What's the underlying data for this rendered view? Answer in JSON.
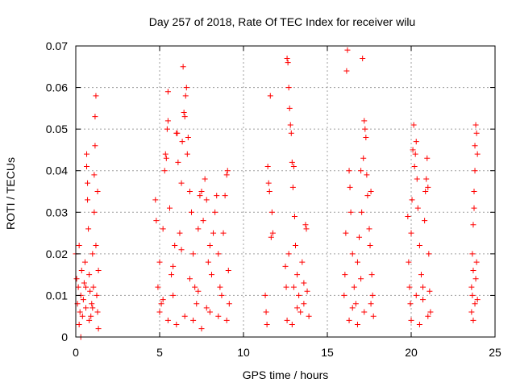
{
  "chart_data": {
    "type": "scatter",
    "title": "Day 257 of 2018, Rate Of TEC Index for receiver wilu",
    "xlabel": "GPS time / hours",
    "ylabel": "ROTI / TECUs",
    "xlim": [
      0,
      25
    ],
    "ylim": [
      0,
      0.07
    ],
    "xticks": [
      0,
      5,
      10,
      15,
      20,
      25
    ],
    "xtick_labels": [
      "0",
      "5",
      "10",
      "15",
      "20",
      "25"
    ],
    "yticks": [
      0,
      0.01,
      0.02,
      0.03,
      0.04,
      0.05,
      0.06,
      0.07
    ],
    "ytick_labels": [
      "0",
      "0.01",
      "0.02",
      "0.03",
      "0.04",
      "0.05",
      "0.06",
      "0.07"
    ],
    "grid": true,
    "marker": "+",
    "color": "#ff0000",
    "series": [
      {
        "name": "ROTI",
        "points": [
          [
            0.0,
            0.02
          ],
          [
            0.05,
            0.014
          ],
          [
            0.1,
            0.008
          ],
          [
            0.15,
            0.012
          ],
          [
            0.2,
            0.022
          ],
          [
            0.25,
            0.006
          ],
          [
            0.3,
            0.01
          ],
          [
            0.35,
            0.016
          ],
          [
            0.4,
            0.005
          ],
          [
            0.45,
            0.009
          ],
          [
            0.5,
            0.013
          ],
          [
            0.55,
            0.018
          ],
          [
            0.6,
            0.007
          ],
          [
            0.65,
            0.044
          ],
          [
            0.65,
            0.041
          ],
          [
            0.7,
            0.037
          ],
          [
            0.7,
            0.033
          ],
          [
            0.75,
            0.026
          ],
          [
            0.8,
            0.015
          ],
          [
            0.85,
            0.011
          ],
          [
            0.9,
            0.005
          ],
          [
            0.95,
            0.008
          ],
          [
            1.0,
            0.02
          ],
          [
            1.05,
            0.012
          ],
          [
            1.1,
            0.03
          ],
          [
            1.1,
            0.039
          ],
          [
            1.15,
            0.053
          ],
          [
            1.15,
            0.046
          ],
          [
            1.2,
            0.058
          ],
          [
            1.2,
            0.022
          ],
          [
            1.25,
            0.01
          ],
          [
            1.3,
            0.006
          ],
          [
            1.3,
            0.035
          ],
          [
            1.35,
            0.016
          ],
          [
            1.35,
            0.002
          ],
          [
            0.3,
            0.0
          ],
          [
            0.2,
            0.003
          ],
          [
            1.0,
            0.007
          ],
          [
            0.8,
            0.004
          ],
          [
            0.6,
            0.012
          ],
          [
            4.75,
            0.033
          ],
          [
            4.8,
            0.028
          ],
          [
            4.9,
            0.012
          ],
          [
            5.0,
            0.018
          ],
          [
            5.1,
            0.008
          ],
          [
            5.2,
            0.026
          ],
          [
            5.3,
            0.04
          ],
          [
            5.35,
            0.044
          ],
          [
            5.4,
            0.043
          ],
          [
            5.45,
            0.05
          ],
          [
            5.5,
            0.052
          ],
          [
            5.5,
            0.059
          ],
          [
            5.6,
            0.031
          ],
          [
            5.7,
            0.015
          ],
          [
            5.8,
            0.01
          ],
          [
            5.9,
            0.022
          ],
          [
            6.0,
            0.049
          ],
          [
            6.05,
            0.049
          ],
          [
            6.1,
            0.042
          ],
          [
            6.2,
            0.025
          ],
          [
            6.3,
            0.037
          ],
          [
            6.35,
            0.047
          ],
          [
            6.4,
            0.065
          ],
          [
            6.45,
            0.054
          ],
          [
            6.5,
            0.053
          ],
          [
            6.55,
            0.058
          ],
          [
            6.6,
            0.06
          ],
          [
            6.65,
            0.044
          ],
          [
            6.7,
            0.048
          ],
          [
            6.8,
            0.035
          ],
          [
            6.9,
            0.03
          ],
          [
            7.0,
            0.02
          ],
          [
            7.1,
            0.012
          ],
          [
            7.2,
            0.008
          ],
          [
            7.3,
            0.026
          ],
          [
            7.4,
            0.034
          ],
          [
            7.5,
            0.035
          ],
          [
            7.6,
            0.028
          ],
          [
            7.7,
            0.038
          ],
          [
            7.8,
            0.033
          ],
          [
            7.9,
            0.018
          ],
          [
            8.0,
            0.022
          ],
          [
            8.1,
            0.015
          ],
          [
            8.2,
            0.025
          ],
          [
            8.3,
            0.03
          ],
          [
            8.4,
            0.034
          ],
          [
            8.5,
            0.02
          ],
          [
            8.6,
            0.012
          ],
          [
            8.7,
            0.01
          ],
          [
            8.8,
            0.025
          ],
          [
            8.9,
            0.034
          ],
          [
            9.0,
            0.039
          ],
          [
            9.05,
            0.04
          ],
          [
            9.1,
            0.016
          ],
          [
            9.15,
            0.008
          ],
          [
            5.0,
            0.006
          ],
          [
            5.5,
            0.004
          ],
          [
            6.0,
            0.003
          ],
          [
            6.5,
            0.005
          ],
          [
            7.0,
            0.004
          ],
          [
            7.5,
            0.002
          ],
          [
            8.0,
            0.006
          ],
          [
            8.5,
            0.005
          ],
          [
            9.0,
            0.004
          ],
          [
            5.2,
            0.009
          ],
          [
            5.8,
            0.017
          ],
          [
            6.3,
            0.021
          ],
          [
            6.8,
            0.014
          ],
          [
            7.3,
            0.011
          ],
          [
            7.8,
            0.007
          ],
          [
            11.3,
            0.01
          ],
          [
            11.35,
            0.006
          ],
          [
            11.4,
            0.003
          ],
          [
            11.45,
            0.041
          ],
          [
            11.5,
            0.037
          ],
          [
            11.55,
            0.035
          ],
          [
            11.6,
            0.058
          ],
          [
            11.65,
            0.024
          ],
          [
            11.7,
            0.03
          ],
          [
            11.75,
            0.025
          ],
          [
            12.5,
            0.017
          ],
          [
            12.55,
            0.012
          ],
          [
            12.6,
            0.067
          ],
          [
            12.65,
            0.066
          ],
          [
            12.7,
            0.06
          ],
          [
            12.75,
            0.055
          ],
          [
            12.8,
            0.051
          ],
          [
            12.85,
            0.049
          ],
          [
            12.9,
            0.042
          ],
          [
            12.95,
            0.036
          ],
          [
            13.0,
            0.041
          ],
          [
            13.05,
            0.029
          ],
          [
            13.1,
            0.022
          ],
          [
            13.2,
            0.015
          ],
          [
            13.3,
            0.01
          ],
          [
            13.4,
            0.006
          ],
          [
            13.5,
            0.018
          ],
          [
            13.6,
            0.013
          ],
          [
            13.7,
            0.027
          ],
          [
            13.75,
            0.026
          ],
          [
            13.8,
            0.011
          ],
          [
            13.9,
            0.005
          ],
          [
            12.6,
            0.004
          ],
          [
            12.9,
            0.003
          ],
          [
            13.2,
            0.007
          ],
          [
            13.6,
            0.008
          ],
          [
            13.0,
            0.012
          ],
          [
            12.7,
            0.02
          ],
          [
            16.0,
            0.01
          ],
          [
            16.05,
            0.015
          ],
          [
            16.1,
            0.025
          ],
          [
            16.15,
            0.064
          ],
          [
            16.2,
            0.069
          ],
          [
            16.3,
            0.04
          ],
          [
            16.35,
            0.036
          ],
          [
            16.4,
            0.03
          ],
          [
            16.5,
            0.02
          ],
          [
            16.6,
            0.012
          ],
          [
            16.7,
            0.008
          ],
          [
            16.8,
            0.018
          ],
          [
            16.9,
            0.024
          ],
          [
            17.0,
            0.04
          ],
          [
            17.05,
            0.03
          ],
          [
            17.1,
            0.067
          ],
          [
            17.15,
            0.043
          ],
          [
            17.2,
            0.052
          ],
          [
            17.25,
            0.05
          ],
          [
            17.3,
            0.048
          ],
          [
            17.35,
            0.039
          ],
          [
            17.4,
            0.034
          ],
          [
            17.5,
            0.026
          ],
          [
            17.55,
            0.022
          ],
          [
            17.6,
            0.035
          ],
          [
            17.65,
            0.015
          ],
          [
            17.7,
            0.01
          ],
          [
            17.75,
            0.005
          ],
          [
            16.3,
            0.004
          ],
          [
            16.8,
            0.003
          ],
          [
            17.2,
            0.006
          ],
          [
            17.6,
            0.008
          ],
          [
            16.5,
            0.007
          ],
          [
            17.0,
            0.014
          ],
          [
            19.8,
            0.029
          ],
          [
            19.85,
            0.018
          ],
          [
            19.9,
            0.012
          ],
          [
            19.95,
            0.008
          ],
          [
            20.0,
            0.025
          ],
          [
            20.05,
            0.033
          ],
          [
            20.1,
            0.045
          ],
          [
            20.15,
            0.051
          ],
          [
            20.2,
            0.041
          ],
          [
            20.25,
            0.044
          ],
          [
            20.3,
            0.047
          ],
          [
            20.35,
            0.038
          ],
          [
            20.4,
            0.031
          ],
          [
            20.5,
            0.022
          ],
          [
            20.6,
            0.015
          ],
          [
            20.7,
            0.009
          ],
          [
            20.8,
            0.028
          ],
          [
            20.85,
            0.035
          ],
          [
            20.9,
            0.038
          ],
          [
            20.95,
            0.043
          ],
          [
            21.0,
            0.036
          ],
          [
            21.05,
            0.02
          ],
          [
            21.1,
            0.011
          ],
          [
            21.15,
            0.006
          ],
          [
            20.0,
            0.004
          ],
          [
            20.5,
            0.003
          ],
          [
            21.0,
            0.005
          ],
          [
            20.3,
            0.01
          ],
          [
            20.7,
            0.012
          ],
          [
            23.6,
            0.012
          ],
          [
            23.65,
            0.02
          ],
          [
            23.7,
            0.027
          ],
          [
            23.75,
            0.035
          ],
          [
            23.8,
            0.046
          ],
          [
            23.85,
            0.051
          ],
          [
            23.9,
            0.049
          ],
          [
            23.95,
            0.044
          ],
          [
            23.8,
            0.04
          ],
          [
            23.75,
            0.031
          ],
          [
            23.7,
            0.016
          ],
          [
            23.65,
            0.01
          ],
          [
            23.6,
            0.006
          ],
          [
            23.7,
            0.004
          ],
          [
            23.8,
            0.008
          ],
          [
            23.85,
            0.014
          ],
          [
            23.9,
            0.018
          ],
          [
            23.95,
            0.009
          ]
        ]
      }
    ]
  }
}
